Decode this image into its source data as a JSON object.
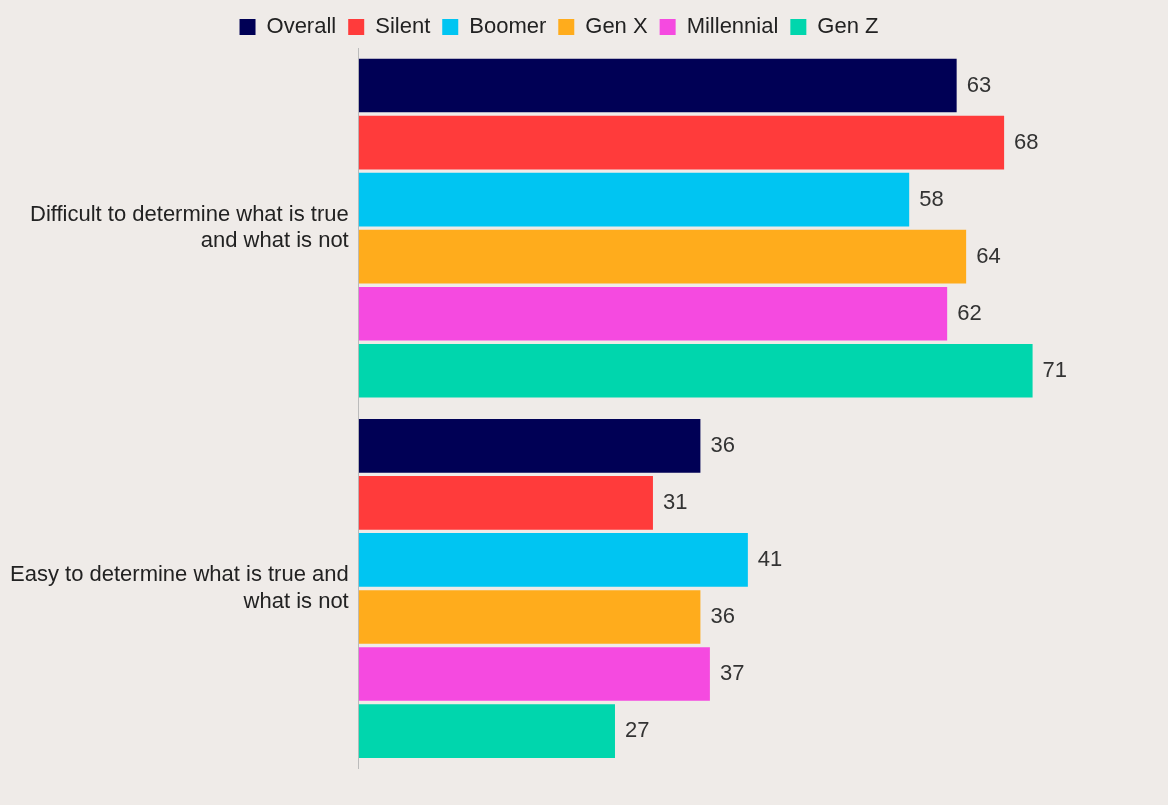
{
  "chart_data": {
    "type": "bar",
    "orientation": "horizontal",
    "categories": [
      "Difficult to determine what is true and what is not",
      "Easy to determine what is true and what is not"
    ],
    "series": [
      {
        "name": "Overall",
        "color": "#000055",
        "values": [
          63,
          36
        ]
      },
      {
        "name": "Silent",
        "color": "#ff3b3b",
        "values": [
          68,
          31
        ]
      },
      {
        "name": "Boomer",
        "color": "#00c5f2",
        "values": [
          58,
          41
        ]
      },
      {
        "name": "Gen X",
        "color": "#ffac1c",
        "values": [
          64,
          36
        ]
      },
      {
        "name": "Millennial",
        "color": "#f54ae0",
        "values": [
          62,
          37
        ]
      },
      {
        "name": "Gen Z",
        "color": "#00d6ad",
        "values": [
          71,
          27
        ]
      }
    ],
    "data_labels": true,
    "legend": "top",
    "grid": false,
    "tick_labels": "y"
  }
}
